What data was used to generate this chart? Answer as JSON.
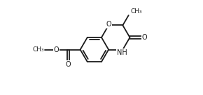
{
  "background_color": "#ffffff",
  "line_color": "#1a1a1a",
  "line_width": 1.3,
  "font_size_atom": 7.0,
  "font_size_methyl": 6.5,
  "figsize": [
    2.9,
    1.37
  ],
  "dpi": 100,
  "xlim": [
    -4.5,
    5.5
  ],
  "ylim": [
    -3.2,
    3.5
  ]
}
